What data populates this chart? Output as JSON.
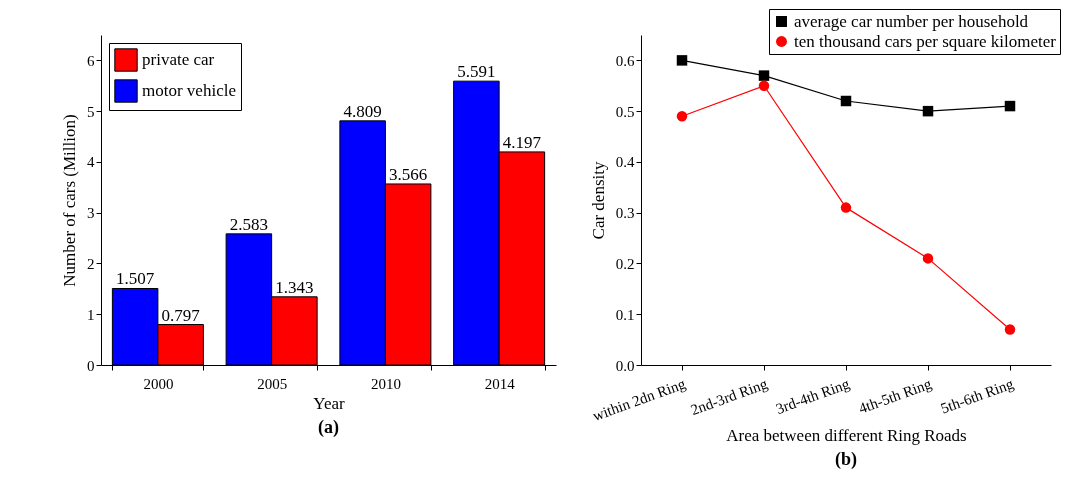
{
  "chart_data": [
    {
      "type": "bar",
      "categories": [
        "2000",
        "2005",
        "2010",
        "2014"
      ],
      "xlabel": "Year",
      "ylabel": "Number of cars (Million)",
      "ylim": [
        0,
        6.5
      ],
      "yticks": [
        0,
        1,
        2,
        3,
        4,
        5,
        6
      ],
      "grid": false,
      "legend": "top left",
      "data_labels": true,
      "annotations": [
        "(a)"
      ],
      "series": [
        {
          "name": "motor vehicle",
          "color": "#0000ff",
          "values": [
            1.507,
            2.583,
            4.809,
            5.591
          ]
        },
        {
          "name": "private car",
          "color": "#ff0000",
          "values": [
            0.797,
            1.343,
            3.566,
            4.197
          ]
        }
      ]
    },
    {
      "type": "line",
      "categories": [
        "within 2dn Ring",
        "2nd-3rd Ring",
        "3rd-4th Ring",
        "4th-5th Ring",
        "5th-6th Ring"
      ],
      "xlabel": "Area between different Ring Roads",
      "ylabel": "Car density",
      "ylim": [
        0,
        0.65
      ],
      "yticks": [
        {
          "value": 0,
          "label": "0.0"
        },
        0.1,
        0.2,
        0.3,
        0.4,
        0.5,
        0.6
      ],
      "grid": false,
      "legend": "top right",
      "line_style": "solid",
      "annotations": [
        "(b)"
      ],
      "series": [
        {
          "name": "average car number per household",
          "color": "#000000",
          "marker": "square",
          "values": [
            0.6,
            0.57,
            0.52,
            0.5,
            0.51
          ]
        },
        {
          "name": "ten thousand cars per square kilometer",
          "color": "#ff0000",
          "marker": "circle",
          "values": [
            0.49,
            0.55,
            0.31,
            0.21,
            0.07
          ]
        }
      ]
    }
  ]
}
